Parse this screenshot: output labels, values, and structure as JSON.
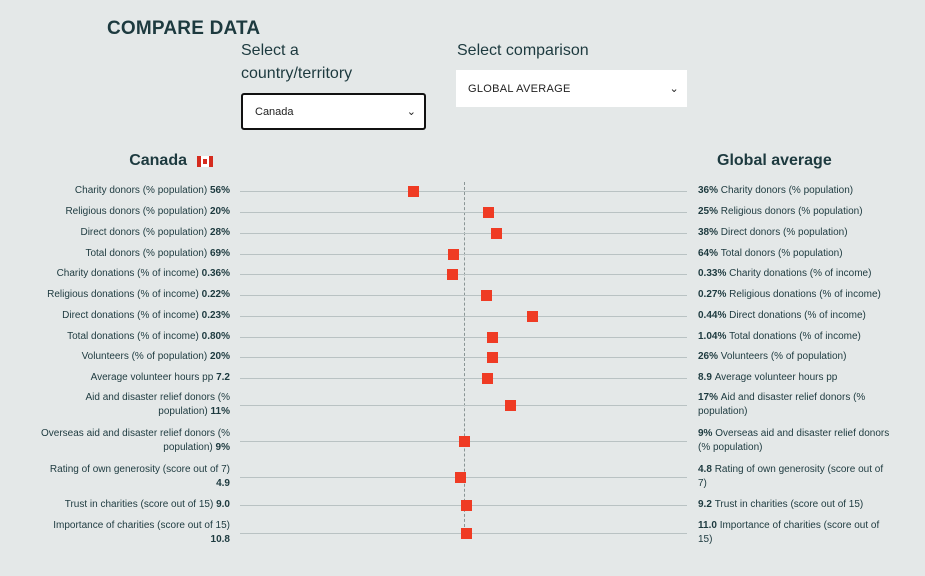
{
  "page_title": "COMPARE DATA",
  "country_select": {
    "label": "Select a country/territory",
    "label_line1": "Select a",
    "label_line2": "country/territory",
    "value": "Canada"
  },
  "comparison_select": {
    "label": "Select comparison",
    "value": "GLOBAL AVERAGE"
  },
  "left_heading": "Canada",
  "right_heading": "Global average",
  "colors": {
    "marker": "#ef3b24",
    "text": "#1d3a3f",
    "background": "#e4e8e8"
  },
  "rows": [
    {
      "label": "Charity donors (% population)",
      "country_value": "56%",
      "comparison_value": "36%",
      "left_lines": [
        "Charity donors (% population)"
      ],
      "right_lines": [
        "Charity donors (% population)"
      ],
      "relative": -1.14
    },
    {
      "label": "Religious donors (% population)",
      "country_value": "20%",
      "comparison_value": "25%",
      "left_lines": [
        "Religious donors (% population)"
      ],
      "right_lines": [
        "Religious donors (% population)"
      ],
      "relative": 0.56
    },
    {
      "label": "Direct donors (% population)",
      "country_value": "28%",
      "comparison_value": "38%",
      "left_lines": [
        "Direct donors (% population)"
      ],
      "right_lines": [
        "Direct donors (% population)"
      ],
      "relative": 0.74
    },
    {
      "label": "Total donors (% population)",
      "country_value": "69%",
      "comparison_value": "64%",
      "left_lines": [
        "Total donors (% population)"
      ],
      "right_lines": [
        "Total donors (% population)"
      ],
      "relative": -0.23
    },
    {
      "label": "Charity donations (% of income)",
      "country_value": "0.36%",
      "comparison_value": "0.33%",
      "left_lines": [
        "Charity donations (% of income)"
      ],
      "right_lines": [
        "Charity donations (% of income)"
      ],
      "relative": -0.26
    },
    {
      "label": "Religious donations (% of income)",
      "country_value": "0.22%",
      "comparison_value": "0.27%",
      "left_lines": [
        "Religious donations (% of income)"
      ],
      "right_lines": [
        "Religious donations (% of income)"
      ],
      "relative": 0.51
    },
    {
      "label": "Direct donations (% of income)",
      "country_value": "0.23%",
      "comparison_value": "0.44%",
      "left_lines": [
        "Direct donations (% of income)"
      ],
      "right_lines": [
        "Direct donations (% of income)"
      ],
      "relative": 1.56
    },
    {
      "label": "Total donations (% of income)",
      "country_value": "0.80%",
      "comparison_value": "1.04%",
      "left_lines": [
        "Total donations (% of income)"
      ],
      "right_lines": [
        "Total donations (% of income)"
      ],
      "relative": 0.65
    },
    {
      "label": "Volunteers (% of population)",
      "country_value": "20%",
      "comparison_value": "26%",
      "left_lines": [
        "Volunteers (% of population)"
      ],
      "right_lines": [
        "Volunteers (% of population)"
      ],
      "relative": 0.65
    },
    {
      "label": "Average volunteer hours pp",
      "country_value": "7.2",
      "comparison_value": "8.9",
      "left_lines": [
        "Average volunteer hours pp"
      ],
      "right_lines": [
        "Average volunteer hours pp"
      ],
      "relative": 0.53
    },
    {
      "label": "Aid and disaster relief donors (% population)",
      "country_value": "11%",
      "comparison_value": "17%",
      "left_lines": [
        "Aid and disaster relief donors (%",
        "population)"
      ],
      "right_lines": [
        "Aid and disaster relief donors (%",
        "population)"
      ],
      "relative": 1.05
    },
    {
      "label": "Overseas aid and disaster relief donors (% population)",
      "country_value": "9%",
      "comparison_value": "9%",
      "left_lines": [
        "Overseas aid and disaster relief donors (%",
        "population)"
      ],
      "right_lines": [
        "Overseas aid and disaster relief donors",
        "(% population)"
      ],
      "relative": 0.0
    },
    {
      "label": "Rating of own generosity (score out of 7)",
      "country_value": "4.9",
      "comparison_value": "4.8",
      "left_lines": [
        "Rating of own generosity (score out of 7)",
        ""
      ],
      "right_lines": [
        "Rating of own generosity (score out of",
        "7)"
      ],
      "relative": -0.07
    },
    {
      "label": "Trust in charities (score out of 15)",
      "country_value": "9.0",
      "comparison_value": "9.2",
      "left_lines": [
        "Trust in charities (score out of 15)"
      ],
      "right_lines": [
        "Trust in charities (score out of 15)"
      ],
      "relative": 0.05
    },
    {
      "label": "Importance of charities (score out of 15)",
      "country_value": "10.8",
      "comparison_value": "11.0",
      "left_lines": [
        "Importance of charities (score out of 15)",
        ""
      ],
      "right_lines": [
        "Importance of charities (score out of",
        "15)"
      ],
      "relative": 0.05
    }
  ]
}
